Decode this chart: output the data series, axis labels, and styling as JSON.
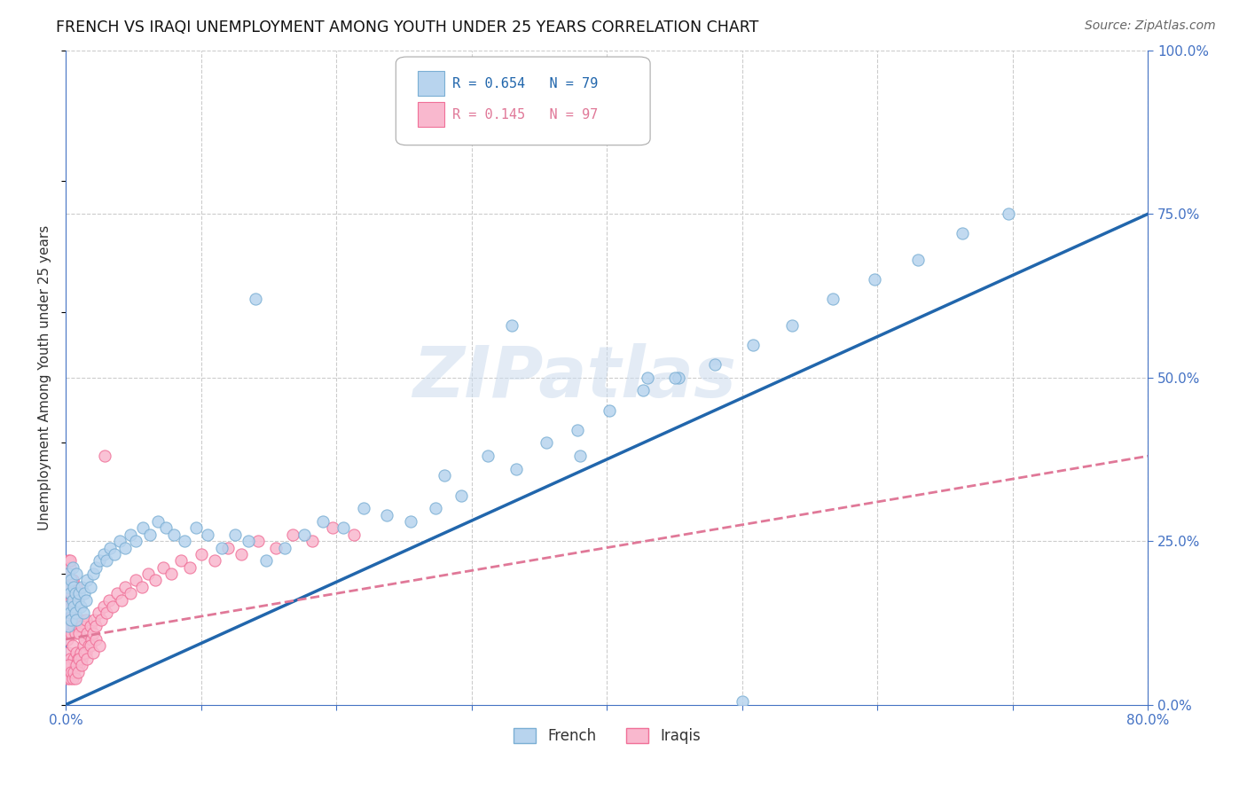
{
  "title": "FRENCH VS IRAQI UNEMPLOYMENT AMONG YOUTH UNDER 25 YEARS CORRELATION CHART",
  "source": "Source: ZipAtlas.com",
  "ylabel_label": "Unemployment Among Youth under 25 years",
  "french_r": 0.654,
  "french_n": 79,
  "iraqi_r": 0.145,
  "iraqi_n": 97,
  "french_scatter_color_face": "#b8d4ee",
  "french_scatter_color_edge": "#7bafd4",
  "iraqi_scatter_color_face": "#f9b8ce",
  "iraqi_scatter_color_edge": "#f07098",
  "french_line_color": "#2166ac",
  "iraqi_line_color": "#e07898",
  "watermark": "ZIPatlas",
  "background_color": "#ffffff",
  "grid_color": "#cccccc",
  "axis_color": "#4472c4",
  "tick_color": "#4472c4",
  "french_line_x": [
    0.0,
    0.8
  ],
  "french_line_y": [
    0.0,
    0.75
  ],
  "iraqi_line_x": [
    0.0,
    0.8
  ],
  "iraqi_line_y": [
    0.1,
    0.38
  ],
  "x_ticks": [
    0.0,
    0.1,
    0.2,
    0.3,
    0.4,
    0.5,
    0.6,
    0.7,
    0.8
  ],
  "x_labels": [
    "0.0%",
    "",
    "",
    "",
    "",
    "",
    "",
    "",
    "80.0%"
  ],
  "y_ticks": [
    0.0,
    0.25,
    0.5,
    0.75,
    1.0
  ],
  "y_labels": [
    "0.0%",
    "25.0%",
    "50.0%",
    "75.0%",
    "100.0%"
  ],
  "xlim": [
    0.0,
    0.8
  ],
  "ylim": [
    0.0,
    1.0
  ],
  "french_x": [
    0.001,
    0.001,
    0.002,
    0.002,
    0.003,
    0.003,
    0.004,
    0.004,
    0.005,
    0.005,
    0.006,
    0.006,
    0.007,
    0.007,
    0.008,
    0.008,
    0.009,
    0.01,
    0.011,
    0.012,
    0.013,
    0.014,
    0.015,
    0.016,
    0.018,
    0.02,
    0.022,
    0.025,
    0.028,
    0.03,
    0.033,
    0.036,
    0.04,
    0.044,
    0.048,
    0.052,
    0.057,
    0.062,
    0.068,
    0.074,
    0.08,
    0.088,
    0.096,
    0.105,
    0.115,
    0.125,
    0.135,
    0.148,
    0.162,
    0.176,
    0.19,
    0.205,
    0.22,
    0.237,
    0.255,
    0.273,
    0.292,
    0.312,
    0.333,
    0.355,
    0.378,
    0.402,
    0.427,
    0.453,
    0.48,
    0.508,
    0.537,
    0.567,
    0.598,
    0.63,
    0.663,
    0.697,
    0.28,
    0.38,
    0.43,
    0.5,
    0.33,
    0.14,
    0.45
  ],
  "french_y": [
    0.15,
    0.18,
    0.12,
    0.2,
    0.14,
    0.17,
    0.13,
    0.19,
    0.16,
    0.21,
    0.15,
    0.18,
    0.14,
    0.17,
    0.13,
    0.2,
    0.16,
    0.17,
    0.15,
    0.18,
    0.14,
    0.17,
    0.16,
    0.19,
    0.18,
    0.2,
    0.21,
    0.22,
    0.23,
    0.22,
    0.24,
    0.23,
    0.25,
    0.24,
    0.26,
    0.25,
    0.27,
    0.26,
    0.28,
    0.27,
    0.26,
    0.25,
    0.27,
    0.26,
    0.24,
    0.26,
    0.25,
    0.22,
    0.24,
    0.26,
    0.28,
    0.27,
    0.3,
    0.29,
    0.28,
    0.3,
    0.32,
    0.38,
    0.36,
    0.4,
    0.42,
    0.45,
    0.48,
    0.5,
    0.52,
    0.55,
    0.58,
    0.62,
    0.65,
    0.68,
    0.72,
    0.75,
    0.35,
    0.38,
    0.5,
    0.005,
    0.58,
    0.62,
    0.5
  ],
  "iraqi_x": [
    0.001,
    0.001,
    0.001,
    0.002,
    0.002,
    0.002,
    0.002,
    0.003,
    0.003,
    0.003,
    0.003,
    0.004,
    0.004,
    0.004,
    0.005,
    0.005,
    0.005,
    0.005,
    0.006,
    0.006,
    0.006,
    0.007,
    0.007,
    0.007,
    0.008,
    0.008,
    0.008,
    0.009,
    0.009,
    0.01,
    0.01,
    0.011,
    0.011,
    0.012,
    0.012,
    0.013,
    0.014,
    0.015,
    0.015,
    0.016,
    0.017,
    0.018,
    0.019,
    0.02,
    0.021,
    0.022,
    0.024,
    0.026,
    0.028,
    0.03,
    0.032,
    0.035,
    0.038,
    0.041,
    0.044,
    0.048,
    0.052,
    0.056,
    0.061,
    0.066,
    0.072,
    0.078,
    0.085,
    0.092,
    0.1,
    0.11,
    0.12,
    0.13,
    0.142,
    0.155,
    0.168,
    0.182,
    0.197,
    0.213,
    0.001,
    0.002,
    0.002,
    0.003,
    0.003,
    0.004,
    0.004,
    0.005,
    0.005,
    0.006,
    0.006,
    0.007,
    0.008,
    0.009,
    0.01,
    0.012,
    0.014,
    0.016,
    0.018,
    0.02,
    0.022,
    0.025,
    0.029
  ],
  "iraqi_y": [
    0.05,
    0.1,
    0.15,
    0.08,
    0.12,
    0.18,
    0.22,
    0.07,
    0.13,
    0.17,
    0.21,
    0.06,
    0.11,
    0.16,
    0.05,
    0.09,
    0.14,
    0.19,
    0.07,
    0.12,
    0.17,
    0.06,
    0.11,
    0.16,
    0.08,
    0.13,
    0.18,
    0.07,
    0.12,
    0.06,
    0.11,
    0.08,
    0.13,
    0.07,
    0.12,
    0.09,
    0.1,
    0.08,
    0.13,
    0.11,
    0.09,
    0.12,
    0.1,
    0.11,
    0.13,
    0.12,
    0.14,
    0.13,
    0.15,
    0.14,
    0.16,
    0.15,
    0.17,
    0.16,
    0.18,
    0.17,
    0.19,
    0.18,
    0.2,
    0.19,
    0.21,
    0.2,
    0.22,
    0.21,
    0.23,
    0.22,
    0.24,
    0.23,
    0.25,
    0.24,
    0.26,
    0.25,
    0.27,
    0.26,
    0.04,
    0.06,
    0.2,
    0.04,
    0.22,
    0.05,
    0.17,
    0.04,
    0.19,
    0.05,
    0.16,
    0.04,
    0.06,
    0.05,
    0.07,
    0.06,
    0.08,
    0.07,
    0.09,
    0.08,
    0.1,
    0.09,
    0.38
  ]
}
